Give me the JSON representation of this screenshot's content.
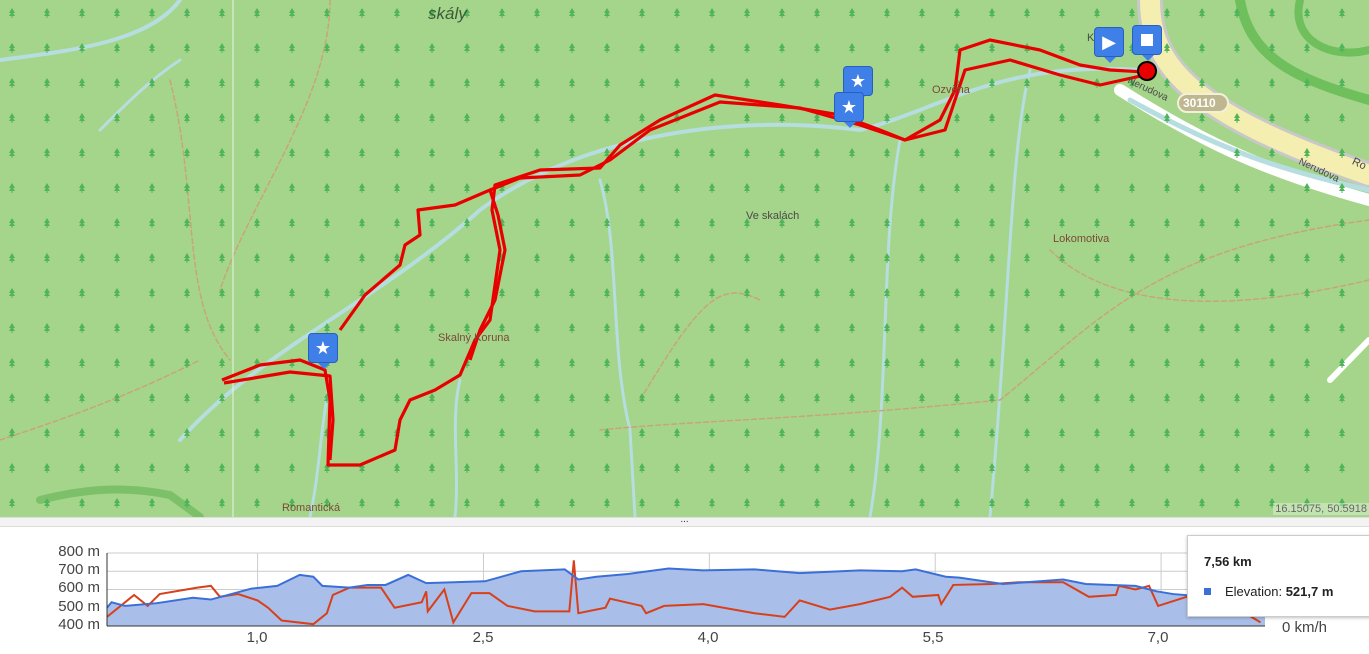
{
  "map": {
    "labels": [
      {
        "text": "skály",
        "name": "rock-area-label"
      },
      {
        "text": "Ve skalách",
        "name": "locality-label"
      },
      {
        "text": "Skalný Koruna",
        "name": "rock-label"
      },
      {
        "text": "Lokomotiva",
        "name": "rock-lokomotiva-label"
      },
      {
        "text": "Romantická",
        "name": "rock-romanticka-label"
      },
      {
        "text": "Ozvěna",
        "name": "rock-ozvena-label"
      },
      {
        "text": "Nerudova",
        "name": "street-label"
      },
      {
        "text": "Nerudova",
        "name": "street-label-2"
      },
      {
        "text": "Ro",
        "name": "street-label-3"
      },
      {
        "text": "K",
        "name": "place-label"
      }
    ],
    "road_shield": "30110",
    "coordinates": "16.15075, 50.5918",
    "route_color": "#ff0000",
    "marker_color": "#3f7fe8",
    "markers": [
      {
        "type": "start",
        "icon": "play-icon"
      },
      {
        "type": "end",
        "icon": "stop-icon"
      },
      {
        "type": "waypoint",
        "icon": "star-icon"
      },
      {
        "type": "waypoint",
        "icon": "star-icon"
      },
      {
        "type": "waypoint",
        "icon": "star-icon"
      }
    ]
  },
  "splitter": {
    "handle": "..."
  },
  "chart_data": {
    "type": "area",
    "xlabel": "",
    "ylabel": "",
    "x_ticks": [
      "1,0",
      "2,5",
      "4,0",
      "5,5",
      "7,0"
    ],
    "x_tick_values": [
      1.0,
      2.5,
      4.0,
      5.5,
      7.0
    ],
    "xlim": [
      0,
      7.69
    ],
    "y_ticks": [
      "800 m",
      "700 m",
      "600 m",
      "500 m",
      "400 m"
    ],
    "ylim": [
      400,
      800
    ],
    "y2_label": "0 km/h",
    "y2lim": [
      0,
      8
    ],
    "grid": true,
    "series": [
      {
        "name": "Elevation",
        "color": "#3a6fd8",
        "fill": "#a9bfe9",
        "x": [
          0,
          0.03,
          0.12,
          0.33,
          0.57,
          0.69,
          0.96,
          1.13,
          1.28,
          1.37,
          1.43,
          1.61,
          1.73,
          1.85,
          2.0,
          2.12,
          2.51,
          2.75,
          3.04,
          3.13,
          3.25,
          3.46,
          3.73,
          3.96,
          4.3,
          4.6,
          5.0,
          5.28,
          5.37,
          5.57,
          5.66,
          5.95,
          6.35,
          6.5,
          6.83,
          6.97,
          7.08,
          7.3,
          7.56,
          7.69
        ],
        "y": [
          500,
          530,
          510,
          525,
          555,
          545,
          605,
          620,
          680,
          670,
          620,
          610,
          625,
          625,
          680,
          635,
          645,
          700,
          710,
          655,
          670,
          685,
          715,
          705,
          710,
          690,
          705,
          700,
          710,
          670,
          665,
          630,
          655,
          630,
          620,
          590,
          575,
          560,
          521.7,
          515
        ]
      },
      {
        "color": "#d8401c",
        "x": [
          0,
          0.18,
          0.27,
          0.35,
          0.6,
          0.69,
          0.75,
          0.87,
          1.0,
          1.07,
          1.16,
          1.37,
          1.46,
          1.5,
          1.61,
          1.82,
          1.91,
          2.09,
          2.12,
          2.13,
          2.24,
          2.3,
          2.42,
          2.54,
          2.66,
          2.84,
          3.07,
          3.1,
          3.13,
          3.31,
          3.34,
          3.55,
          3.58,
          3.7,
          3.96,
          4.3,
          4.5,
          4.6,
          4.8,
          5.0,
          5.2,
          5.28,
          5.35,
          5.52,
          5.54,
          5.62,
          5.88,
          6.06,
          6.35,
          6.52,
          6.7,
          6.72,
          6.83,
          6.92,
          6.98,
          7.17,
          7.4,
          7.66
        ],
        "y": [
          1.0,
          3.4,
          2.2,
          3.5,
          4.2,
          4.4,
          3.2,
          3.5,
          2.8,
          2.0,
          0.6,
          0.2,
          1.4,
          3.4,
          4.2,
          4.2,
          2.0,
          2.6,
          3.8,
          1.6,
          4.0,
          0.4,
          3.6,
          3.6,
          2.2,
          1.6,
          1.6,
          7.2,
          1.4,
          2.0,
          3.0,
          2.2,
          1.4,
          2.2,
          2.4,
          1.4,
          1.0,
          2.8,
          1.8,
          2.4,
          3.2,
          4.2,
          3.2,
          3.4,
          2.4,
          4.5,
          4.6,
          4.8,
          4.8,
          3.2,
          3.4,
          4.4,
          4.0,
          4.4,
          2.2,
          3.2,
          3.0,
          0.4
        ]
      }
    ],
    "cursor_x": 7.56
  },
  "tooltip": {
    "distance": "7,56 km",
    "label": "Elevation: ",
    "value": "521,7 m"
  }
}
